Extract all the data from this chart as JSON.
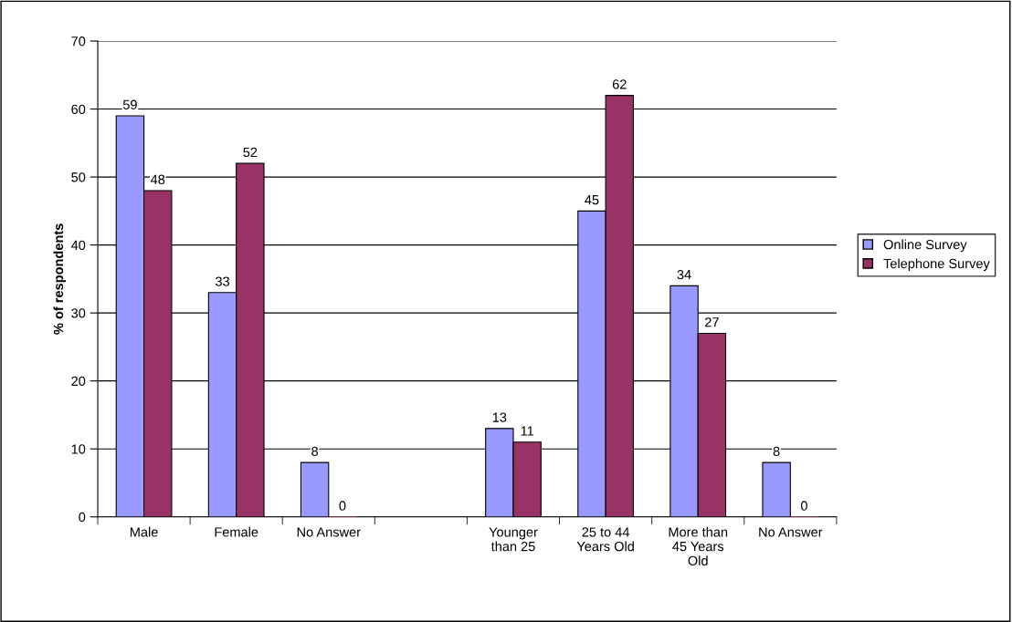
{
  "chart_data": {
    "type": "bar",
    "ylabel": "% of respondents",
    "categories": [
      "Male",
      "Female",
      "No Answer",
      null,
      "Younger than 25",
      "25 to 44 Years Old",
      "More than 45 Years Old",
      "No Answer"
    ],
    "series": [
      {
        "name": "Online Survey",
        "color": "#9999ff",
        "values": [
          59,
          33,
          8,
          null,
          13,
          45,
          34,
          8
        ]
      },
      {
        "name": "Telephone Survey",
        "color": "#993366",
        "values": [
          48,
          52,
          0,
          null,
          11,
          62,
          27,
          0
        ]
      }
    ],
    "ylim": [
      0,
      70
    ],
    "yticks": [
      0,
      10,
      20,
      30,
      40,
      50,
      60,
      70
    ],
    "grid": "y",
    "legend": "right",
    "data_labels": true
  }
}
